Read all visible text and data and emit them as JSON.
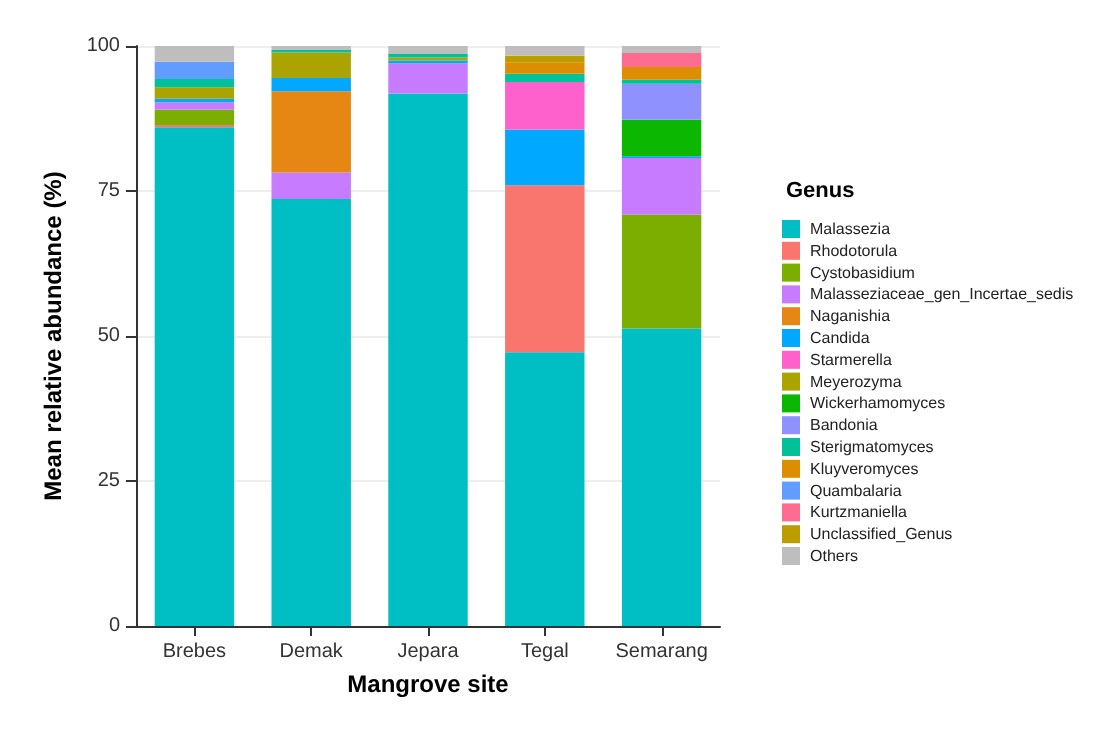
{
  "chart_data": {
    "type": "bar",
    "stacked": true,
    "xlabel": "Mangrove site",
    "ylabel": "Mean relative abundance (%)",
    "legend_title": "Genus",
    "legend": "right",
    "grid": "y",
    "categories": [
      "Brebes",
      "Demak",
      "Jepara",
      "Tegal",
      "Semarang"
    ],
    "ylim": [
      0,
      100
    ],
    "yticks": [
      0,
      25,
      50,
      75,
      100
    ],
    "series": [
      {
        "name": "Malassezia",
        "color": "#00bfc4",
        "values": [
          86,
          73.6,
          91.8,
          47.2,
          51.3
        ]
      },
      {
        "name": "Rhodotorula",
        "color": "#f8766d",
        "values": [
          0.4,
          0,
          0,
          28.8,
          0
        ]
      },
      {
        "name": "Cystobasidium",
        "color": "#7cae00",
        "values": [
          2.6,
          0,
          0,
          0,
          19.6
        ]
      },
      {
        "name": "Malasseziaceae_gen_Incertae_sedis",
        "color": "#c77cff",
        "values": [
          1.3,
          4.6,
          5.2,
          0,
          9.8
        ]
      },
      {
        "name": "Naganishia",
        "color": "#e68613",
        "values": [
          0,
          14,
          0,
          0,
          0
        ]
      },
      {
        "name": "Candida",
        "color": "#00a9ff",
        "values": [
          0.6,
          2.3,
          0.5,
          9.6,
          0.3
        ]
      },
      {
        "name": "Starmerella",
        "color": "#ff61cc",
        "values": [
          0,
          0,
          0,
          8.2,
          0
        ]
      },
      {
        "name": "Meyerozyma",
        "color": "#aba300",
        "values": [
          2,
          4.4,
          0.5,
          0,
          0
        ]
      },
      {
        "name": "Wickerhamomyces",
        "color": "#0cb702",
        "values": [
          0,
          0,
          0,
          0,
          6.3
        ]
      },
      {
        "name": "Bandonia",
        "color": "#8f91ff",
        "values": [
          0,
          0,
          0,
          0,
          6.2
        ]
      },
      {
        "name": "Sterigmatomyces",
        "color": "#00c19a",
        "values": [
          1.4,
          0.4,
          0.6,
          1.4,
          0.7
        ]
      },
      {
        "name": "Kluyveromyces",
        "color": "#dd8e00",
        "values": [
          0,
          0,
          0,
          2,
          2.2
        ]
      },
      {
        "name": "Quambalaria",
        "color": "#619cff",
        "values": [
          3,
          0,
          0,
          0,
          0
        ]
      },
      {
        "name": "Kurtzmaniella",
        "color": "#ff6c91",
        "values": [
          0,
          0,
          0,
          0,
          2.4
        ]
      },
      {
        "name": "Unclassified_Genus",
        "color": "#bb9d00",
        "values": [
          0,
          0,
          0,
          1.1,
          0
        ]
      },
      {
        "name": "Others",
        "color": "#bebebe",
        "values": [
          2.7,
          0.7,
          1.4,
          1.7,
          1.2
        ]
      }
    ]
  }
}
